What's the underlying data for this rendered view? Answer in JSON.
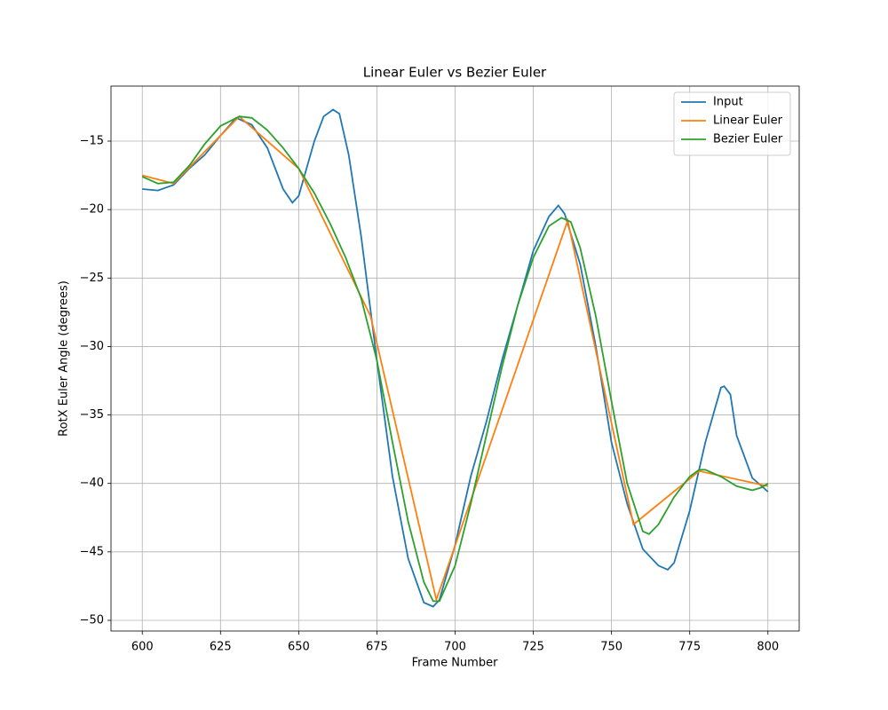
{
  "chart_data": {
    "type": "line",
    "title": "Linear Euler vs Bezier Euler",
    "x_label": "Frame Number",
    "y_label": "RotX Euler Angle (degrees)",
    "xlim": [
      590,
      810
    ],
    "ylim": [
      -50.78,
      -10.98
    ],
    "xticks": [
      600,
      625,
      650,
      675,
      700,
      725,
      750,
      775,
      800
    ],
    "yticks": [
      {
        "value": -50,
        "label": "−50"
      },
      {
        "value": -45,
        "label": "−45"
      },
      {
        "value": -40,
        "label": "−40"
      },
      {
        "value": -35,
        "label": "−35"
      },
      {
        "value": -30,
        "label": "−30"
      },
      {
        "value": -25,
        "label": "−25"
      },
      {
        "value": -20,
        "label": "−20"
      },
      {
        "value": -15,
        "label": "−15"
      }
    ],
    "grid": true,
    "legend": "upper right",
    "series": [
      {
        "name": "Input",
        "color": "#1f77b4",
        "x": [
          600,
          605,
          610,
          615,
          620,
          625,
          630,
          635,
          640,
          645,
          648,
          650,
          655,
          658,
          661,
          663,
          666,
          670,
          675,
          680,
          685,
          690,
          693,
          695,
          700,
          705,
          710,
          715,
          720,
          725,
          730,
          733,
          735,
          740,
          745,
          750,
          755,
          760,
          765,
          768,
          770,
          775,
          780,
          785,
          786,
          788,
          790,
          795,
          800
        ],
        "values": [
          -18.5,
          -18.6,
          -18.2,
          -17.0,
          -16.0,
          -14.6,
          -13.3,
          -13.8,
          -15.5,
          -18.5,
          -19.5,
          -19.0,
          -15.0,
          -13.2,
          -12.7,
          -13.0,
          -16.0,
          -22.0,
          -31.0,
          -39.5,
          -45.5,
          -48.7,
          -49.0,
          -48.5,
          -44.5,
          -39.5,
          -35.5,
          -31.0,
          -27.0,
          -23.0,
          -20.5,
          -19.7,
          -20.3,
          -24.0,
          -30.0,
          -37.0,
          -41.5,
          -44.8,
          -46.0,
          -46.3,
          -45.8,
          -42.0,
          -37.0,
          -33.0,
          -32.9,
          -33.5,
          -36.5,
          -39.6,
          -40.6
        ]
      },
      {
        "name": "Linear Euler",
        "color": "#ff7f0e",
        "x": [
          600,
          610,
          631,
          650,
          673,
          694,
          736,
          757,
          778,
          800
        ],
        "values": [
          -17.5,
          -18.1,
          -13.2,
          -17.0,
          -27.8,
          -48.5,
          -20.8,
          -43.0,
          -39.1,
          -40.2
        ]
      },
      {
        "name": "Bezier Euler",
        "color": "#2ca02c",
        "x": [
          600,
          605,
          610,
          615,
          620,
          625,
          631,
          635,
          640,
          645,
          650,
          655,
          660,
          665,
          670,
          675,
          680,
          685,
          690,
          693,
          695,
          700,
          705,
          710,
          715,
          720,
          725,
          730,
          734,
          737,
          740,
          745,
          750,
          755,
          760,
          762,
          765,
          770,
          775,
          778,
          780,
          785,
          790,
          795,
          798,
          800
        ],
        "values": [
          -17.6,
          -18.1,
          -18.0,
          -16.8,
          -15.2,
          -13.9,
          -13.2,
          -13.3,
          -14.2,
          -15.5,
          -17.0,
          -18.8,
          -21.0,
          -23.5,
          -26.5,
          -31.0,
          -37.0,
          -42.8,
          -47.2,
          -48.6,
          -48.6,
          -46.0,
          -41.5,
          -36.5,
          -31.5,
          -27.0,
          -23.5,
          -21.2,
          -20.6,
          -20.9,
          -22.8,
          -27.8,
          -34.0,
          -40.0,
          -43.5,
          -43.7,
          -43.0,
          -41.0,
          -39.5,
          -39.0,
          -39.0,
          -39.5,
          -40.2,
          -40.5,
          -40.3,
          -40.0
        ]
      }
    ]
  }
}
